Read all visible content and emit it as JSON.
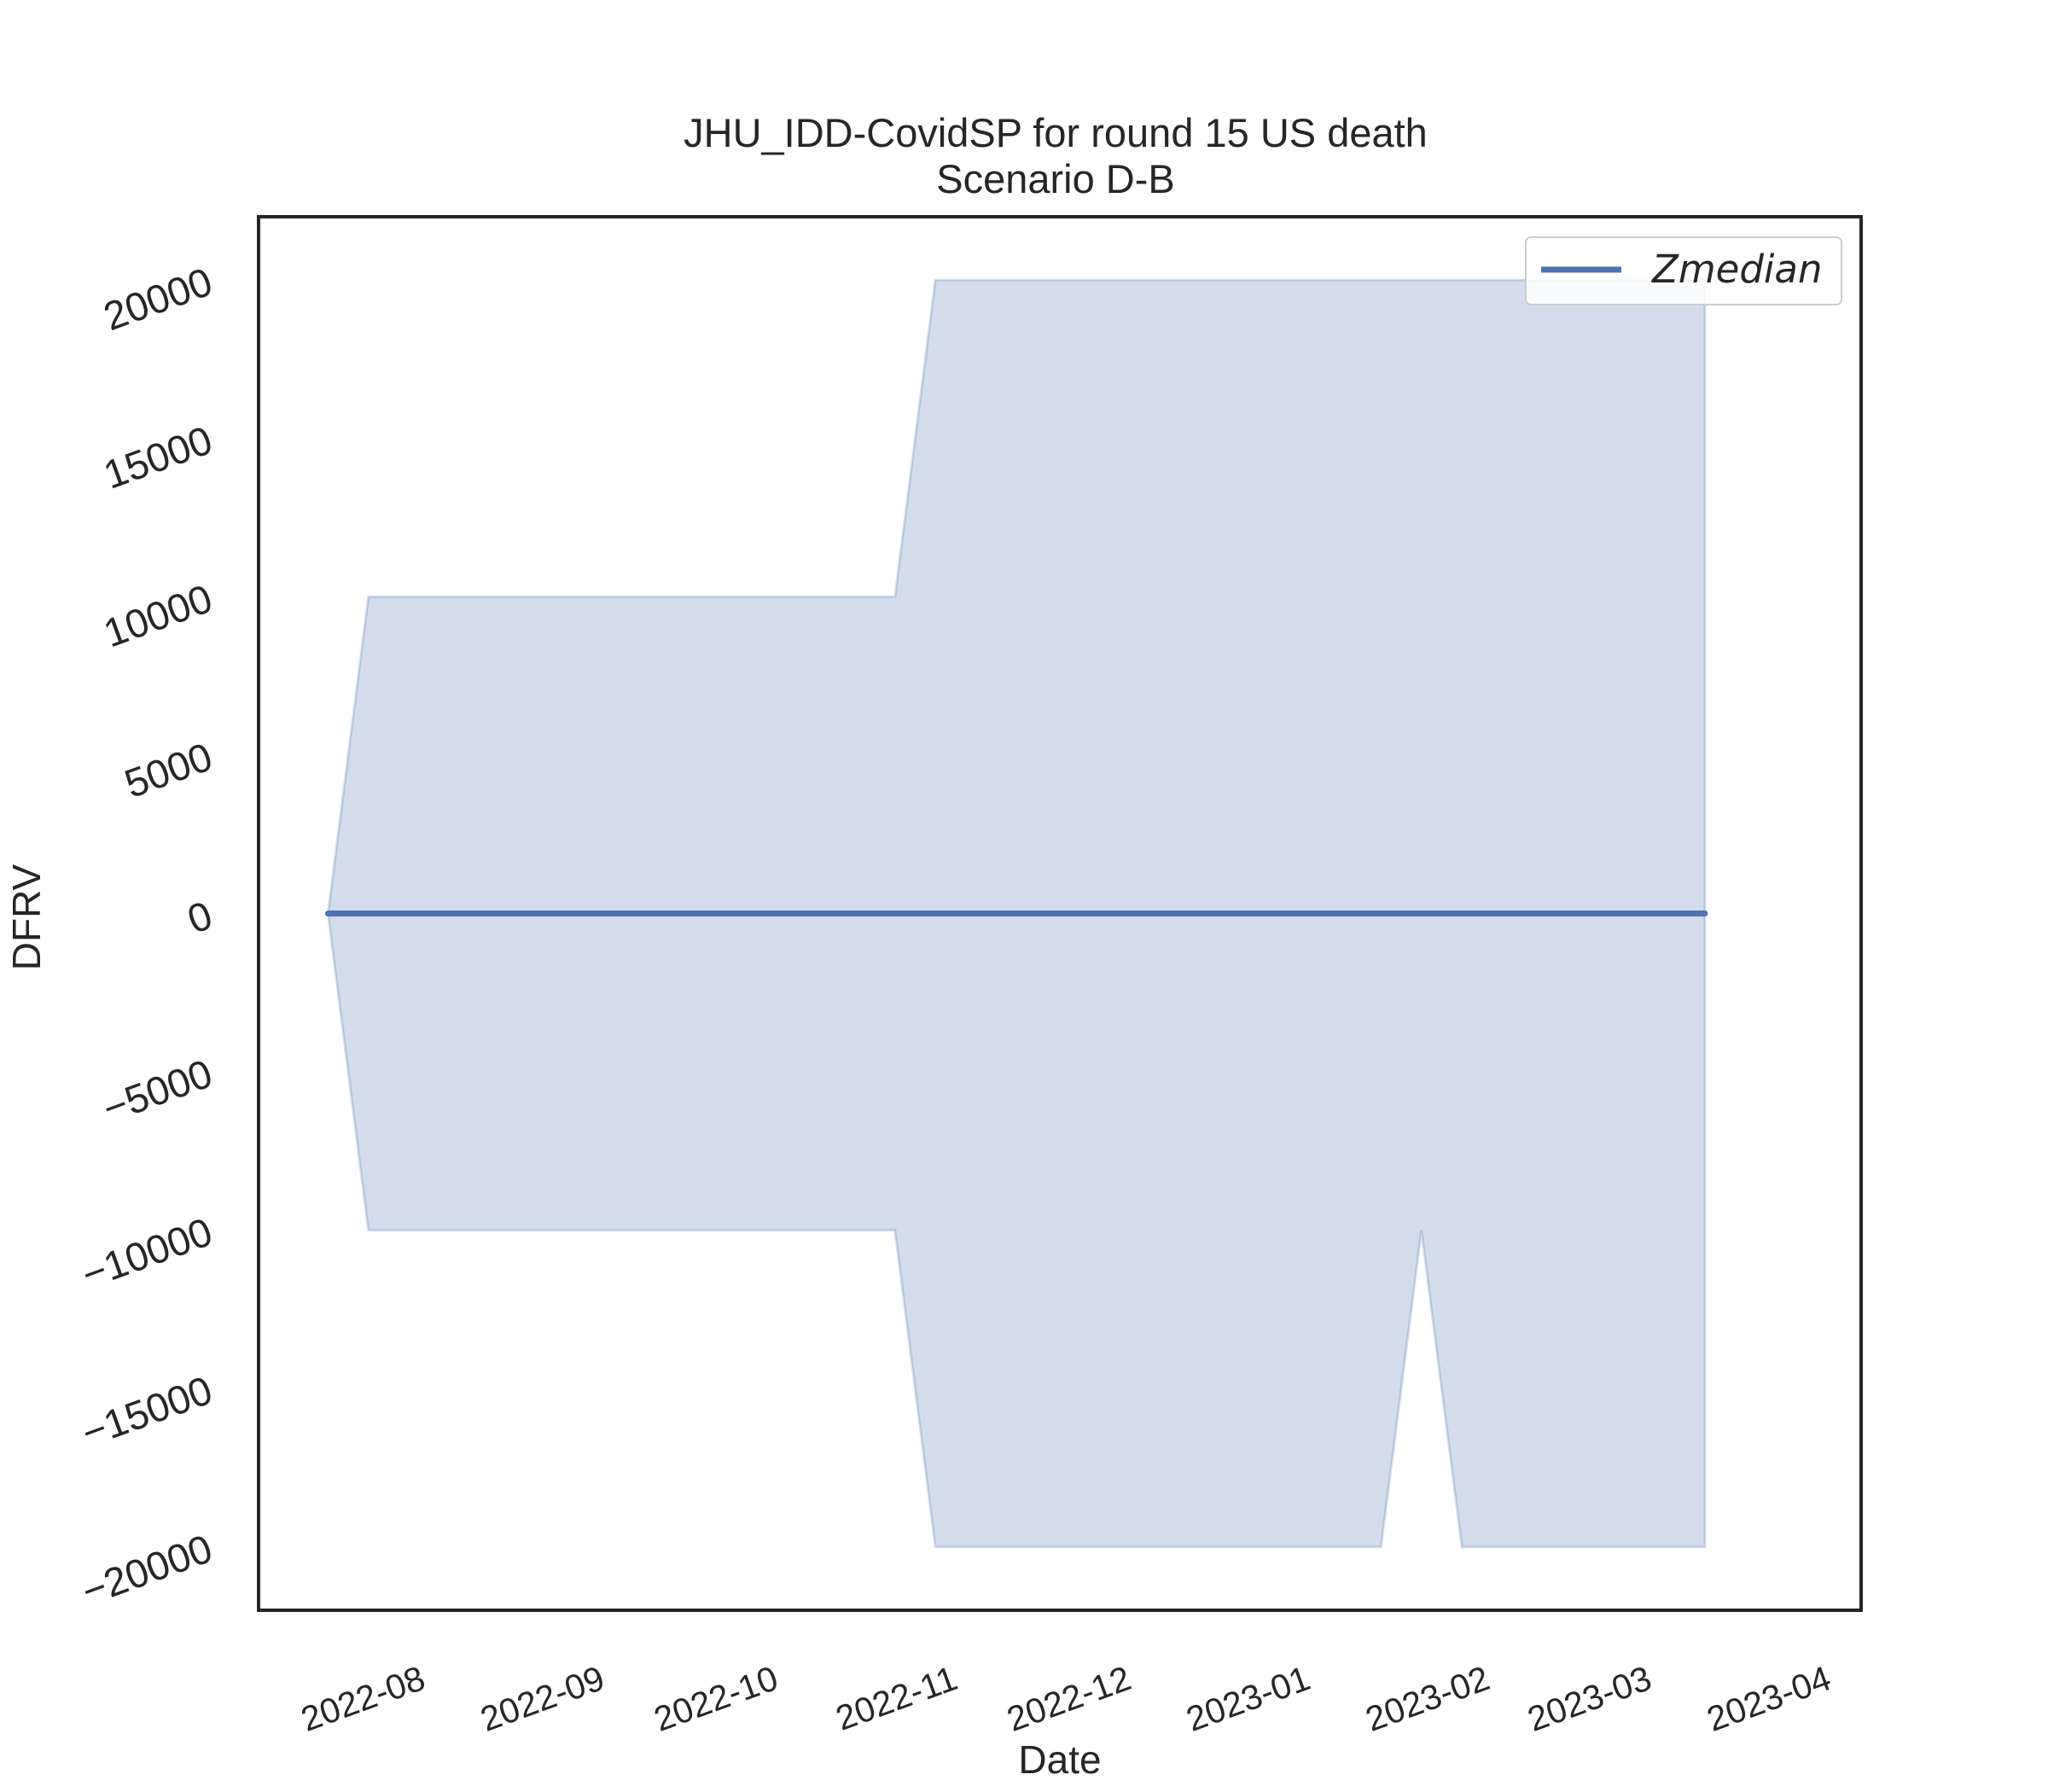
{
  "chart_data": {
    "type": "area",
    "title": "JHU_IDD-CovidSP for round 15 US death",
    "subtitle": "Scenario D-B",
    "xlabel": "Date",
    "ylabel": "DFRV",
    "ylim": [
      -22000,
      22000
    ],
    "xlim": [
      "2022-07-04",
      "2023-04-07"
    ],
    "grid": false,
    "legend_placement": "top-right",
    "x_ticks": [
      "2022-08",
      "2022-09",
      "2022-10",
      "2022-11",
      "2022-12",
      "2023-01",
      "2023-02",
      "2023-03",
      "2023-04"
    ],
    "y_ticks": [
      20000,
      15000,
      10000,
      5000,
      0,
      -5000,
      -10000,
      -15000,
      -20000
    ],
    "y_tick_labels": [
      "20000",
      "15000",
      "10000",
      "5000",
      "0",
      "−5000",
      "−10000",
      "−15000",
      "−20000"
    ],
    "x": [
      "2022-07-16",
      "2022-07-23",
      "2022-10-22",
      "2022-10-29",
      "2023-01-14",
      "2023-01-21",
      "2023-01-28",
      "2023-03-11"
    ],
    "band_upper": [
      0,
      10000,
      10000,
      20000,
      20000,
      20000,
      20000,
      20000
    ],
    "band_lower": [
      0,
      -10000,
      -10000,
      -20000,
      -20000,
      -10000,
      -20000,
      -20000
    ],
    "series": [
      {
        "name": "Zmedian",
        "values": [
          0,
          0,
          0,
          0,
          0,
          0,
          0,
          0
        ]
      }
    ],
    "colors": {
      "line": "#4c72b0",
      "band": "#4c72b0"
    }
  }
}
